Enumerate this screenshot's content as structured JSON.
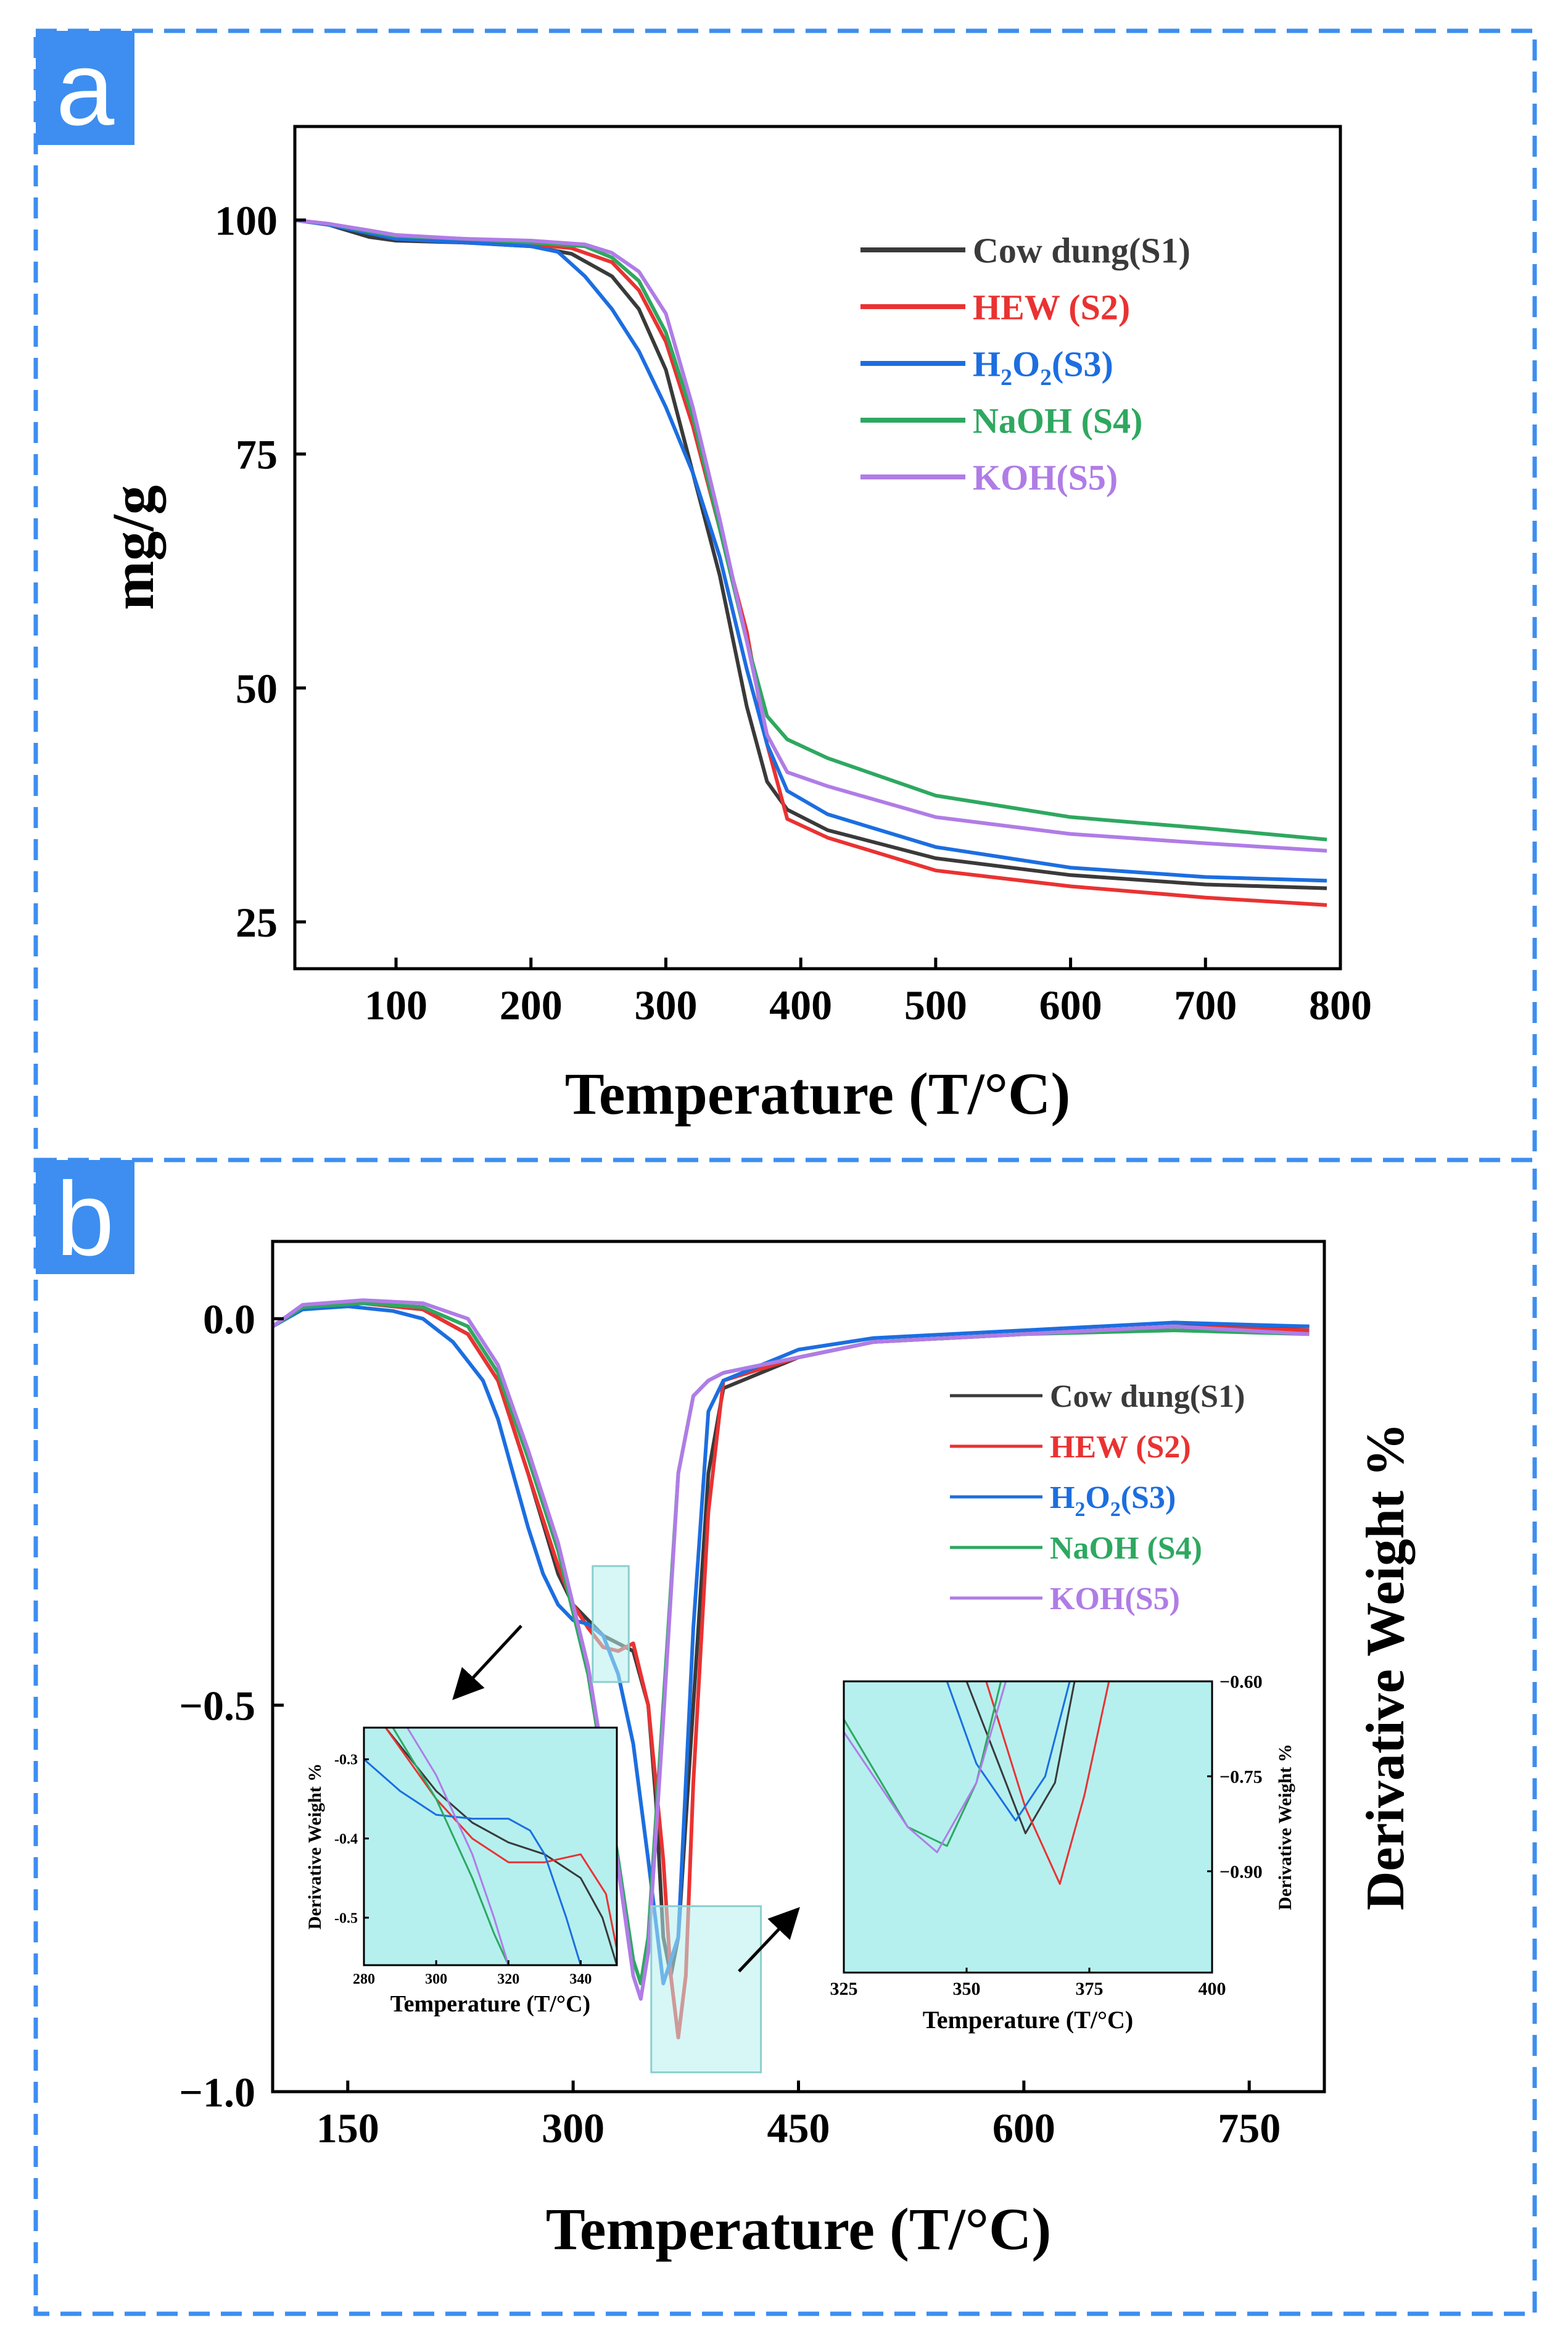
{
  "colors": {
    "s1": "#3a3a3a",
    "s2": "#ea3232",
    "s3": "#1c6ee0",
    "s4": "#2ea860",
    "s5": "#b07ce6",
    "panel_border": "#3d8ef0",
    "panel_tag_bg": "#3d8ef0",
    "highlight": "#b5f0ef"
  },
  "legend": [
    {
      "key": "s1",
      "label": "Cow dung(S1)"
    },
    {
      "key": "s2",
      "label": "HEW (S2)"
    },
    {
      "key": "s3",
      "label": "H2O2(S3)",
      "html_parts": [
        "H",
        "2",
        "O",
        "2",
        "(S3)"
      ]
    },
    {
      "key": "s4",
      "label": "NaOH (S4)"
    },
    {
      "key": "s5",
      "label": "KOH(S5)"
    }
  ],
  "chart_data": [
    {
      "panel": "a",
      "type": "line",
      "xlabel": "Temperature (T/°C)",
      "ylabel": "mg/g",
      "xlim": [
        25,
        800
      ],
      "ylim": [
        20,
        110
      ],
      "xticks": [
        100,
        200,
        300,
        400,
        500,
        600,
        700,
        800
      ],
      "xtick_labels": [
        "100",
        "200",
        "300",
        "400",
        "500",
        "600",
        "700",
        "800"
      ],
      "yticks": [
        25,
        50,
        75,
        100
      ],
      "ytick_labels": [
        "25",
        "50",
        "75",
        "100"
      ],
      "series": [
        {
          "key": "s1",
          "name": "Cow dung(S1)",
          "x": [
            25,
            50,
            80,
            100,
            150,
            200,
            230,
            260,
            280,
            300,
            320,
            340,
            360,
            375,
            390,
            420,
            500,
            600,
            700,
            790
          ],
          "y": [
            100,
            99.5,
            98.2,
            97.8,
            97.6,
            97.2,
            96.4,
            94,
            90.5,
            84,
            73,
            62,
            48,
            40,
            37,
            34.8,
            31.8,
            30,
            29,
            28.6
          ]
        },
        {
          "key": "s2",
          "name": "HEW (S2)",
          "x": [
            25,
            50,
            80,
            100,
            150,
            200,
            230,
            260,
            280,
            300,
            320,
            340,
            360,
            375,
            390,
            420,
            500,
            600,
            700,
            790
          ],
          "y": [
            100,
            99.6,
            98.6,
            98.1,
            97.8,
            97.4,
            97.0,
            95.5,
            92.5,
            87,
            78,
            67,
            56,
            44,
            36,
            34,
            30.5,
            28.8,
            27.6,
            26.8
          ]
        },
        {
          "key": "s3",
          "name": "H2O2(S3)",
          "x": [
            25,
            50,
            80,
            100,
            150,
            200,
            220,
            240,
            260,
            280,
            300,
            320,
            340,
            360,
            375,
            390,
            420,
            500,
            600,
            700,
            790
          ],
          "y": [
            100,
            99.5,
            98.6,
            98.0,
            97.6,
            97.2,
            96.6,
            94,
            90.5,
            86,
            80,
            73,
            64,
            52,
            44,
            39,
            36.5,
            33,
            30.8,
            29.8,
            29.4
          ]
        },
        {
          "key": "s4",
          "name": "NaOH (S4)",
          "x": [
            25,
            50,
            80,
            100,
            150,
            200,
            240,
            260,
            280,
            300,
            320,
            340,
            360,
            375,
            390,
            420,
            500,
            600,
            700,
            790
          ],
          "y": [
            100,
            99.6,
            98.8,
            98.3,
            98,
            97.6,
            97.2,
            96,
            93.5,
            88,
            79,
            67,
            55,
            47,
            44.5,
            42.5,
            38.5,
            36.2,
            35,
            33.8
          ]
        },
        {
          "key": "s5",
          "name": "KOH(S5)",
          "x": [
            25,
            50,
            80,
            100,
            150,
            200,
            240,
            260,
            280,
            300,
            320,
            340,
            360,
            375,
            390,
            420,
            500,
            600,
            700,
            790
          ],
          "y": [
            100,
            99.6,
            98.9,
            98.4,
            98,
            97.8,
            97.4,
            96.5,
            94.5,
            90,
            80,
            68,
            55,
            45,
            41,
            39.5,
            36.2,
            34.4,
            33.4,
            32.6
          ]
        }
      ]
    },
    {
      "panel": "b",
      "type": "line",
      "xlabel": "Temperature (T/°C)",
      "ylabel": "Derivative Weight %",
      "xlim": [
        100,
        800
      ],
      "ylim": [
        -1.0,
        0.1
      ],
      "xticks": [
        150,
        300,
        450,
        600,
        750
      ],
      "xtick_labels": [
        "150",
        "300",
        "450",
        "600",
        "750"
      ],
      "yticks": [
        0.0,
        -0.5,
        -1.0
      ],
      "ytick_labels": [
        "0.0",
        "−0.5",
        "−1.0"
      ],
      "series": [
        {
          "key": "s1",
          "name": "Cow dung(S1)",
          "x": [
            100,
            120,
            160,
            200,
            230,
            250,
            270,
            290,
            300,
            310,
            320,
            330,
            340,
            350,
            355,
            360,
            365,
            370,
            380,
            390,
            400,
            450,
            500,
            600,
            700,
            790
          ],
          "y": [
            -0.01,
            0.015,
            0.02,
            0.012,
            -0.02,
            -0.08,
            -0.2,
            -0.33,
            -0.37,
            -0.39,
            -0.41,
            -0.42,
            -0.43,
            -0.5,
            -0.62,
            -0.8,
            -0.85,
            -0.8,
            -0.5,
            -0.2,
            -0.09,
            -0.05,
            -0.03,
            -0.02,
            -0.01,
            -0.01
          ]
        },
        {
          "key": "s2",
          "name": "HEW (S2)",
          "x": [
            100,
            120,
            160,
            200,
            230,
            250,
            270,
            290,
            300,
            310,
            320,
            330,
            340,
            350,
            360,
            365,
            370,
            375,
            380,
            390,
            400,
            450,
            500,
            600,
            700,
            790
          ],
          "y": [
            -0.01,
            0.015,
            0.02,
            0.012,
            -0.02,
            -0.08,
            -0.2,
            -0.32,
            -0.37,
            -0.4,
            -0.425,
            -0.43,
            -0.42,
            -0.5,
            -0.7,
            -0.85,
            -0.93,
            -0.85,
            -0.6,
            -0.25,
            -0.08,
            -0.05,
            -0.03,
            -0.02,
            -0.01,
            -0.015
          ]
        },
        {
          "key": "s3",
          "name": "H2O2(S3)",
          "x": [
            100,
            120,
            150,
            180,
            200,
            220,
            240,
            250,
            260,
            270,
            280,
            290,
            300,
            310,
            320,
            330,
            340,
            350,
            360,
            370,
            380,
            390,
            400,
            450,
            500,
            600,
            700,
            790
          ],
          "y": [
            -0.01,
            0.012,
            0.016,
            0.01,
            0.0,
            -0.03,
            -0.08,
            -0.13,
            -0.2,
            -0.27,
            -0.33,
            -0.37,
            -0.39,
            -0.395,
            -0.41,
            -0.46,
            -0.55,
            -0.7,
            -0.86,
            -0.8,
            -0.4,
            -0.12,
            -0.08,
            -0.04,
            -0.025,
            -0.015,
            -0.005,
            -0.01
          ]
        },
        {
          "key": "s4",
          "name": "NaOH (S4)",
          "x": [
            100,
            120,
            160,
            200,
            230,
            250,
            270,
            290,
            300,
            310,
            320,
            330,
            340,
            345,
            350,
            360,
            370,
            380,
            390,
            400,
            450,
            500,
            600,
            700,
            790
          ],
          "y": [
            -0.01,
            0.015,
            0.02,
            0.015,
            -0.01,
            -0.07,
            -0.18,
            -0.3,
            -0.38,
            -0.46,
            -0.58,
            -0.7,
            -0.83,
            -0.86,
            -0.8,
            -0.5,
            -0.2,
            -0.1,
            -0.08,
            -0.07,
            -0.05,
            -0.03,
            -0.02,
            -0.015,
            -0.02
          ]
        },
        {
          "key": "s5",
          "name": "KOH(S5)",
          "x": [
            100,
            120,
            160,
            200,
            230,
            250,
            270,
            290,
            300,
            310,
            320,
            330,
            340,
            345,
            350,
            360,
            370,
            380,
            390,
            400,
            450,
            500,
            600,
            700,
            790
          ],
          "y": [
            -0.01,
            0.018,
            0.024,
            0.02,
            0.0,
            -0.06,
            -0.17,
            -0.29,
            -0.37,
            -0.45,
            -0.57,
            -0.71,
            -0.85,
            -0.88,
            -0.82,
            -0.52,
            -0.2,
            -0.1,
            -0.08,
            -0.07,
            -0.05,
            -0.03,
            -0.02,
            -0.01,
            -0.02
          ]
        }
      ]
    },
    {
      "panel": "b-inset-left",
      "type": "line",
      "xlabel": "Temperature (T/°C)",
      "ylabel": "Derivative Weight %",
      "xlim": [
        280,
        350
      ],
      "ylim": [
        -0.56,
        -0.26
      ],
      "xticks": [
        280,
        300,
        320,
        340
      ],
      "xtick_labels": [
        "280",
        "300",
        "320",
        "340"
      ],
      "yticks": [
        -0.3,
        -0.4,
        -0.5
      ],
      "ytick_labels": [
        "-0.3",
        "-0.4",
        "-0.5"
      ],
      "series": [
        {
          "key": "s1",
          "name": "Cow dung(S1)",
          "x": [
            286,
            300,
            310,
            320,
            330,
            340,
            346,
            350
          ],
          "y": [
            -0.26,
            -0.34,
            -0.38,
            -0.405,
            -0.42,
            -0.45,
            -0.5,
            -0.56
          ]
        },
        {
          "key": "s2",
          "name": "HEW (S2)",
          "x": [
            286,
            300,
            310,
            320,
            330,
            340,
            347,
            350
          ],
          "y": [
            -0.26,
            -0.35,
            -0.4,
            -0.43,
            -0.43,
            -0.42,
            -0.47,
            -0.54
          ]
        },
        {
          "key": "s3",
          "name": "H2O2(S3)",
          "x": [
            280,
            290,
            300,
            310,
            320,
            326,
            330,
            336,
            340
          ],
          "y": [
            -0.3,
            -0.34,
            -0.37,
            -0.375,
            -0.375,
            -0.39,
            -0.42,
            -0.5,
            -0.56
          ]
        },
        {
          "key": "s4",
          "name": "NaOH (S4)",
          "x": [
            288,
            300,
            310,
            316,
            320
          ],
          "y": [
            -0.26,
            -0.35,
            -0.45,
            -0.52,
            -0.56
          ]
        },
        {
          "key": "s5",
          "name": "KOH(S5)",
          "x": [
            292,
            300,
            310,
            316,
            320
          ],
          "y": [
            -0.26,
            -0.32,
            -0.42,
            -0.5,
            -0.56
          ]
        }
      ]
    },
    {
      "panel": "b-inset-right",
      "type": "line",
      "xlabel": "Temperature (T/°C)",
      "ylabel": "Derivative Weight %",
      "xlim": [
        325,
        400
      ],
      "ylim": [
        -1.06,
        -0.6
      ],
      "xticks": [
        325,
        350,
        375,
        400
      ],
      "xtick_labels": [
        "325",
        "350",
        "375",
        "400"
      ],
      "yticks": [
        -0.6,
        -0.75,
        -0.9
      ],
      "ytick_labels": [
        "−0.60",
        "−0.75",
        "−0.90"
      ],
      "series": [
        {
          "key": "s1",
          "name": "Cow dung(S1)",
          "x": [
            350,
            356,
            362,
            368,
            372
          ],
          "y": [
            -0.6,
            -0.72,
            -0.84,
            -0.76,
            -0.6
          ]
        },
        {
          "key": "s2",
          "name": "HEW (S2)",
          "x": [
            354,
            362,
            369,
            374,
            379
          ],
          "y": [
            -0.6,
            -0.8,
            -0.92,
            -0.78,
            -0.6
          ]
        },
        {
          "key": "s3",
          "name": "H2O2(S3)",
          "x": [
            346,
            352,
            360,
            366,
            371
          ],
          "y": [
            -0.6,
            -0.73,
            -0.82,
            -0.75,
            -0.6
          ]
        },
        {
          "key": "s4",
          "name": "NaOH (S4)",
          "x": [
            325,
            338,
            346,
            352,
            357
          ],
          "y": [
            -0.66,
            -0.83,
            -0.86,
            -0.76,
            -0.6
          ]
        },
        {
          "key": "s5",
          "name": "KOH(S5)",
          "x": [
            325,
            338,
            344,
            352,
            358
          ],
          "y": [
            -0.68,
            -0.83,
            -0.87,
            -0.76,
            -0.6
          ]
        }
      ]
    }
  ],
  "panels": {
    "a": {
      "tag": "a"
    },
    "b": {
      "tag": "b"
    }
  }
}
